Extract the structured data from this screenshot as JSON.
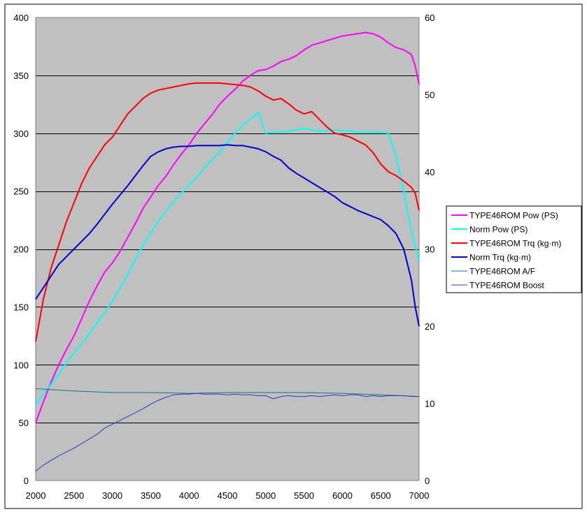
{
  "chart_data": {
    "type": "line",
    "title": "",
    "xlabel": "",
    "ylabel": "",
    "y2label": "",
    "xlim": [
      2000,
      7000
    ],
    "ylim": [
      0,
      400
    ],
    "y2lim": [
      0,
      60
    ],
    "x_ticks": [
      2000,
      2500,
      3000,
      3500,
      4000,
      4500,
      5000,
      5500,
      6000,
      6500,
      7000
    ],
    "y_ticks": [
      0,
      50,
      100,
      150,
      200,
      250,
      300,
      350,
      400
    ],
    "y2_ticks": [
      0,
      10,
      20,
      30,
      40,
      50,
      60
    ],
    "grid": "horizontal",
    "plot_background": "#C0C0C0",
    "legend_position": "right",
    "series": [
      {
        "name": "TYPE46ROM Pow (PS)",
        "axis": "left",
        "color": "#FF00FF",
        "x": [
          2000,
          2100,
          2200,
          2300,
          2400,
          2500,
          2600,
          2700,
          2800,
          2900,
          3000,
          3100,
          3200,
          3300,
          3400,
          3500,
          3600,
          3700,
          3800,
          3900,
          4000,
          4100,
          4200,
          4300,
          4400,
          4500,
          4600,
          4700,
          4800,
          4900,
          5000,
          5100,
          5200,
          5300,
          5400,
          5500,
          5600,
          5700,
          5800,
          5900,
          6000,
          6100,
          6200,
          6300,
          6400,
          6500,
          6600,
          6700,
          6800,
          6900,
          6950,
          7000
        ],
        "y": [
          50,
          68,
          85,
          100,
          113,
          125,
          140,
          155,
          168,
          180,
          188,
          198,
          210,
          222,
          235,
          245,
          255,
          263,
          273,
          282,
          290,
          300,
          308,
          316,
          325,
          332,
          338,
          345,
          350,
          354,
          355,
          358,
          362,
          364,
          367,
          372,
          376,
          378,
          380,
          382,
          384,
          385,
          386,
          387,
          386,
          383,
          378,
          374,
          372,
          368,
          358,
          342
        ]
      },
      {
        "name": "Norm Pow (PS)",
        "axis": "left",
        "color": "#00FFFF",
        "x": [
          2000,
          2100,
          2200,
          2300,
          2400,
          2500,
          2600,
          2700,
          2800,
          2900,
          3000,
          3100,
          3200,
          3300,
          3400,
          3500,
          3600,
          3700,
          3800,
          3900,
          4000,
          4100,
          4200,
          4300,
          4400,
          4500,
          4600,
          4700,
          4800,
          4900,
          5000,
          5100,
          5200,
          5300,
          5400,
          5500,
          5600,
          5700,
          5800,
          5900,
          6000,
          6100,
          6200,
          6300,
          6400,
          6500,
          6600,
          6700,
          6800,
          6900,
          7000
        ],
        "y": [
          65,
          75,
          83,
          92,
          102,
          110,
          118,
          127,
          136,
          145,
          155,
          166,
          178,
          191,
          203,
          214,
          224,
          233,
          241,
          248,
          255,
          262,
          270,
          277,
          284,
          292,
          300,
          307,
          312,
          318,
          300,
          301,
          301,
          302,
          303,
          304,
          303,
          302,
          302,
          303,
          302,
          302,
          301,
          301,
          301,
          301,
          300,
          280,
          250,
          215,
          190
        ]
      },
      {
        "name": "TYPE46ROM Trq (kg·m)",
        "axis": "right",
        "color": "#FF0000",
        "x": [
          2000,
          2100,
          2200,
          2300,
          2400,
          2500,
          2600,
          2700,
          2800,
          2900,
          3000,
          3100,
          3200,
          3300,
          3400,
          3500,
          3600,
          3700,
          3800,
          3900,
          4000,
          4100,
          4200,
          4300,
          4400,
          4500,
          4600,
          4700,
          4800,
          4900,
          5000,
          5100,
          5200,
          5300,
          5400,
          5500,
          5600,
          5700,
          5800,
          5900,
          6000,
          6100,
          6200,
          6300,
          6400,
          6500,
          6600,
          6700,
          6800,
          6900,
          6950,
          7000
        ],
        "y": [
          18.0,
          23.5,
          27.5,
          30.5,
          33.5,
          36.0,
          38.5,
          40.5,
          42.0,
          43.5,
          44.5,
          46.0,
          47.5,
          48.5,
          49.5,
          50.2,
          50.6,
          50.8,
          51.0,
          51.2,
          51.4,
          51.5,
          51.5,
          51.5,
          51.5,
          51.4,
          51.3,
          51.2,
          51.0,
          50.5,
          49.8,
          49.3,
          49.5,
          48.8,
          48.0,
          47.5,
          47.8,
          46.8,
          45.8,
          45.0,
          44.8,
          44.5,
          44.0,
          43.5,
          42.5,
          41.0,
          40.0,
          39.5,
          38.8,
          38.0,
          37.2,
          35.0
        ]
      },
      {
        "name": "Norm Trq (kg·m)",
        "axis": "right",
        "color": "#0000CC",
        "x": [
          2000,
          2100,
          2200,
          2300,
          2400,
          2500,
          2600,
          2700,
          2800,
          2900,
          3000,
          3100,
          3200,
          3300,
          3400,
          3500,
          3600,
          3700,
          3800,
          3900,
          4000,
          4100,
          4200,
          4300,
          4400,
          4500,
          4600,
          4700,
          4800,
          4900,
          5000,
          5100,
          5200,
          5300,
          5400,
          5500,
          5600,
          5700,
          5800,
          5900,
          6000,
          6100,
          6200,
          6300,
          6400,
          6500,
          6600,
          6700,
          6800,
          6900,
          6950,
          7000
        ],
        "y": [
          23.5,
          25.0,
          26.5,
          28.0,
          29.0,
          30.0,
          31.0,
          32.0,
          33.2,
          34.5,
          35.8,
          37.0,
          38.2,
          39.5,
          40.8,
          42.0,
          42.6,
          43.0,
          43.2,
          43.3,
          43.3,
          43.4,
          43.4,
          43.4,
          43.4,
          43.5,
          43.4,
          43.4,
          43.2,
          43.0,
          42.6,
          42.0,
          41.5,
          40.5,
          39.8,
          39.2,
          38.6,
          38.0,
          37.4,
          36.8,
          36.0,
          35.5,
          35.0,
          34.6,
          34.2,
          33.8,
          33.0,
          32.0,
          30.0,
          26.0,
          22.5,
          20.0
        ]
      },
      {
        "name": "TYPE46ROM A/F",
        "axis": "right",
        "color": "#008080",
        "x": [
          2000,
          2500,
          3000,
          3500,
          4000,
          4500,
          5000,
          5500,
          6000,
          6500,
          7000
        ],
        "y": [
          11.9,
          11.6,
          11.4,
          11.4,
          11.3,
          11.4,
          11.4,
          11.4,
          11.3,
          11.1,
          10.9
        ]
      },
      {
        "name": "TYPE46ROM Boost",
        "axis": "right",
        "color": "#3333CC",
        "x": [
          2000,
          2100,
          2200,
          2300,
          2400,
          2500,
          2600,
          2700,
          2800,
          2900,
          3000,
          3100,
          3200,
          3300,
          3400,
          3500,
          3600,
          3700,
          3800,
          3900,
          4000,
          4100,
          4200,
          4300,
          4400,
          4500,
          4600,
          4700,
          4800,
          4900,
          5000,
          5100,
          5200,
          5300,
          5400,
          5500,
          5600,
          5700,
          5800,
          5900,
          6000,
          6100,
          6200,
          6300,
          6400,
          6500,
          6600,
          6700,
          6800,
          6900,
          7000
        ],
        "y": [
          1.2,
          2.0,
          2.6,
          3.2,
          3.7,
          4.2,
          4.8,
          5.4,
          6.0,
          6.8,
          7.3,
          7.8,
          8.3,
          8.8,
          9.3,
          9.9,
          10.4,
          10.8,
          11.1,
          11.2,
          11.2,
          11.3,
          11.2,
          11.2,
          11.2,
          11.1,
          11.2,
          11.1,
          11.1,
          11.0,
          11.0,
          10.6,
          10.9,
          11.0,
          10.9,
          10.9,
          11.0,
          10.9,
          11.0,
          11.1,
          11.0,
          11.1,
          11.1,
          10.9,
          11.0,
          10.9,
          11.0,
          11.0,
          11.0,
          10.9,
          10.9
        ]
      }
    ]
  }
}
